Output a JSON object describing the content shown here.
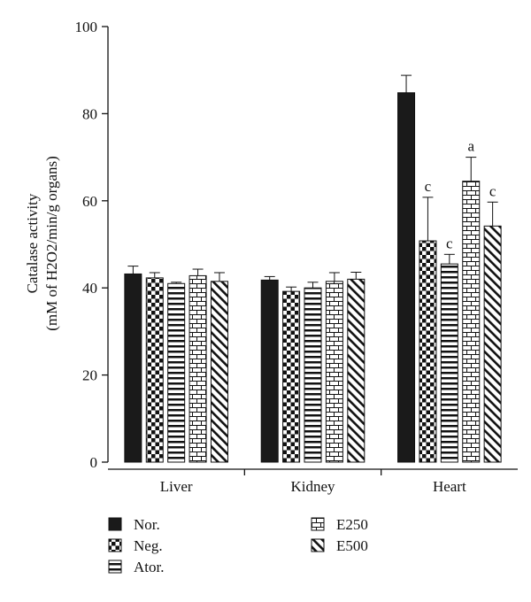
{
  "chart_data": {
    "type": "bar",
    "ylabel_line1": "Catalase activity",
    "ylabel_line2": "(mM of H2O2/min/g organs)",
    "ylim": [
      0,
      100
    ],
    "yticks": [
      0,
      20,
      40,
      60,
      80,
      100
    ],
    "categories": [
      "Liver",
      "Kidney",
      "Heart"
    ],
    "series": [
      {
        "name": "Nor.",
        "pattern": "solid",
        "values": [
          43.2,
          41.8,
          84.8
        ],
        "errors": [
          1.8,
          0.8,
          4.0
        ],
        "annotations": [
          "",
          "",
          ""
        ]
      },
      {
        "name": "Neg.",
        "pattern": "checker",
        "values": [
          42.3,
          39.2,
          50.8
        ],
        "errors": [
          1.2,
          1.0,
          10.0
        ],
        "annotations": [
          "",
          "",
          "c"
        ]
      },
      {
        "name": "Ator.",
        "pattern": "hlines",
        "values": [
          41.0,
          40.0,
          45.5
        ],
        "errors": [
          0.3,
          1.3,
          2.2
        ],
        "annotations": [
          "",
          "",
          "c"
        ]
      },
      {
        "name": "E250",
        "pattern": "brick",
        "values": [
          42.8,
          41.5,
          64.5
        ],
        "errors": [
          1.5,
          2.0,
          5.5
        ],
        "annotations": [
          "",
          "",
          "a"
        ]
      },
      {
        "name": "E500",
        "pattern": "diagonal",
        "values": [
          41.5,
          42.0,
          54.2
        ],
        "errors": [
          2.0,
          1.6,
          5.5
        ],
        "annotations": [
          "",
          "",
          "c"
        ]
      }
    ],
    "grid": false,
    "legend_position": "bottom-left"
  }
}
